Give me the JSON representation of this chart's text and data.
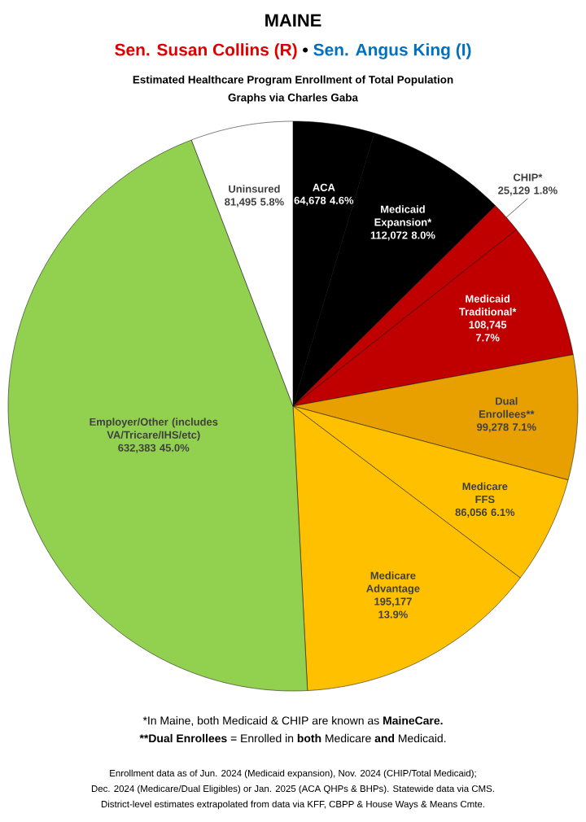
{
  "chart_data": {
    "type": "pie",
    "title": "MAINE",
    "subtitle": "Estimated Healthcare Program Enrollment of Total Population",
    "annotations": [
      "Sen. Susan Collins (R)",
      "•",
      "Sen. Angus King (I)",
      "Graphs via Charles Gaba",
      "*In Maine, both Medicaid & CHIP are known as **MaineCare.**",
      "**",
      "**Dual Enrollees** = Enrolled in **both** Medicare **and** Medicaid.",
      "Enrollment data as of Jun. 2024 (Medicaid expansion), Nov. 2024 (CHIP/Total Medicaid);",
      "Dec. 2024 (Medicare/Dual Eligibles) or Jan. 2025 (ACA QHPs & BHPs). Statewide data via CMS.",
      "District-level estimates extrapolated from data via KFF, CBPP & House Ways & Means Cmte."
    ],
    "categories": [
      "ACA",
      "Medicaid Expansion*",
      "CHIP*",
      "Medicaid Traditional*",
      "Dual Enrollees**",
      "Medicare FFS",
      "Medicare Advantage",
      "Employer/Other (includes VA/Tricare/IHS/etc)",
      "Uninsured"
    ],
    "values": [
      64678,
      112072,
      25129,
      108745,
      99278,
      86056,
      195177,
      632383,
      81495
    ],
    "value_labels": [
      "64,678 4.6%",
      "112,072 8.0%",
      "25,129 1.8%",
      "108,745 7.7%",
      "99,278 7.1%",
      "86,056 6.1%",
      "195,177 13.9%",
      "632,383 45.0%",
      "81,495 5.8%"
    ],
    "colors": [
      "#000000",
      "#000000",
      "#c00000",
      "#c00000",
      "#e8a000",
      "#ffc000",
      "#ffc000",
      "#92d050",
      "#ffffff"
    ]
  }
}
